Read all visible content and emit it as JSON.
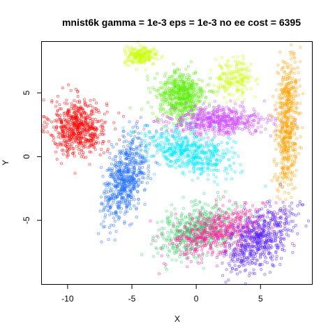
{
  "chart_data": {
    "type": "scatter",
    "title": "mnist6k gamma = 1e-3 eps = 1e-3 no ee cost = 6395",
    "xlabel": "X",
    "ylabel": "Y",
    "xlim": [
      -12.0,
      9.0
    ],
    "ylim": [
      -10.0,
      9.0
    ],
    "xticks": [
      -10,
      -5,
      0,
      5
    ],
    "xtick_labels": [
      "-10",
      "-5",
      "0",
      "5"
    ],
    "yticks": [
      -5,
      0,
      5
    ],
    "ytick_labels": [
      "-5",
      "0",
      "5"
    ],
    "grid": false,
    "legend": "none",
    "marker": "open circle",
    "clusters": [
      {
        "color": "#ff0000",
        "cx": -9.2,
        "cy": 2.3,
        "sx": 1.1,
        "sy": 1.1,
        "rho": 0.0,
        "n": 620
      },
      {
        "color": "#1e6cff",
        "cx": -5.5,
        "cy": -1.7,
        "sx": 0.85,
        "sy": 1.65,
        "rho": 0.45,
        "n": 620
      },
      {
        "color": "#c8ff00",
        "cx": -4.3,
        "cy": 7.9,
        "sx": 0.65,
        "sy": 0.35,
        "rho": 0.0,
        "n": 200
      },
      {
        "color": "#55ee00",
        "cx": -1.2,
        "cy": 4.7,
        "sx": 0.95,
        "sy": 1.0,
        "rho": 0.0,
        "n": 560
      },
      {
        "color": "#cc44ff",
        "cx": 1.7,
        "cy": 2.8,
        "sx": 1.9,
        "sy": 0.55,
        "rho": 0.05,
        "n": 560
      },
      {
        "color": "#00e8ff",
        "cx": -0.6,
        "cy": 0.4,
        "sx": 1.6,
        "sy": 0.95,
        "rho": -0.45,
        "n": 560
      },
      {
        "color": "#c8ff00",
        "cx": 3.0,
        "cy": 6.2,
        "sx": 0.75,
        "sy": 0.7,
        "rho": 0.0,
        "n": 180
      },
      {
        "color": "#ffa100",
        "cx": 7.1,
        "cy": 2.9,
        "sx": 0.45,
        "sy": 2.6,
        "rho": 0.25,
        "n": 560
      },
      {
        "color": "#3bd96e",
        "cx": 0.0,
        "cy": -5.8,
        "sx": 1.5,
        "sy": 1.0,
        "rho": 0.4,
        "n": 560
      },
      {
        "color": "#ff1f9a",
        "cx": 1.8,
        "cy": -5.9,
        "sx": 1.8,
        "sy": 1.0,
        "rho": 0.45,
        "n": 560
      },
      {
        "color": "#5522ff",
        "cx": 4.9,
        "cy": -6.5,
        "sx": 1.3,
        "sy": 1.3,
        "rho": 0.5,
        "n": 600
      }
    ]
  }
}
